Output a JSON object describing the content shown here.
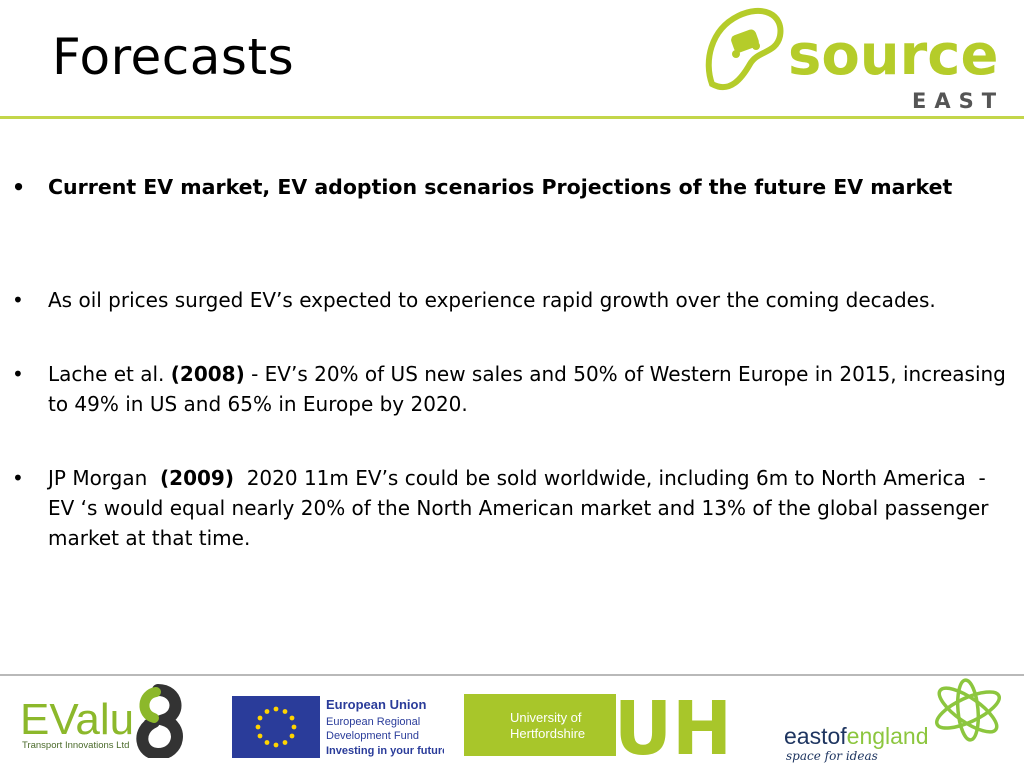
{
  "slide": {
    "title": "Forecasts"
  },
  "brand": {
    "name": "source",
    "region": "EAST",
    "accent": "#b5cc2a"
  },
  "bullets": [
    {
      "text": "Current EV market, EV adoption scenarios Projections of the future EV market"
    },
    {
      "text": "As oil prices surged EV’s expected to experience rapid growth over the coming decades."
    },
    {
      "prefix": "Lache et al. ",
      "bold": "(2008)",
      "text": " - EV’s 20% of US new sales and 50% of Western Europe in 2015, increasing to 49% in US and 65% in Europe by 2020."
    },
    {
      "prefix": "JP Morgan  ",
      "bold": "(2009)",
      "text": "  2020 11m EV’s could be sold worldwide, including 6m to North America  - EV ‘s would equal nearly 20% of the North American market and 13% of the global passenger market at that time."
    }
  ],
  "footer": {
    "evalu": {
      "name": "EValu",
      "sub": "Transport Innovations Ltd"
    },
    "eu": {
      "line1": "European Union",
      "line2": "European Regional",
      "line3": "Development Fund",
      "line4": "Investing in your future"
    },
    "uh": {
      "line1": "University of",
      "line2": "Hertfordshire",
      "mark": "UH"
    },
    "eoe": {
      "name_a": "eastof",
      "name_b": "england",
      "tagline": "space for ideas"
    }
  }
}
